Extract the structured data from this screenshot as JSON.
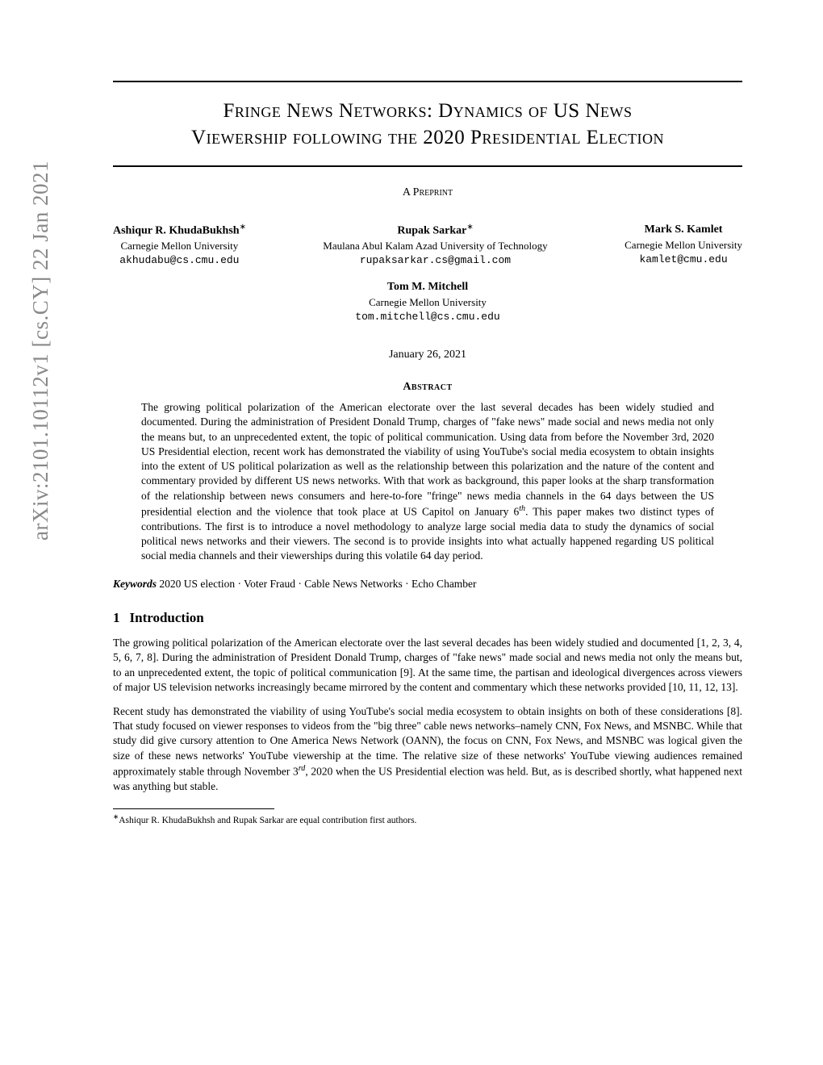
{
  "arxiv_stamp": "arXiv:2101.10112v1  [cs.CY]  22 Jan 2021",
  "title_line1": "Fringe News Networks: Dynamics of US News",
  "title_line2": "Viewership following the 2020 Presidential Election",
  "preprint_label": "A Preprint",
  "authors": [
    {
      "name": "Ashiqur R. KhudaBukhsh",
      "suffix": "∗",
      "affil": "Carnegie Mellon University",
      "email": "akhudabu@cs.cmu.edu"
    },
    {
      "name": "Rupak Sarkar",
      "suffix": "∗",
      "affil": "Maulana Abul Kalam Azad University of Technology",
      "email": "rupaksarkar.cs@gmail.com"
    },
    {
      "name": "Mark S. Kamlet",
      "suffix": "",
      "affil": "Carnegie Mellon University",
      "email": "kamlet@cmu.edu"
    }
  ],
  "author4": {
    "name": "Tom M. Mitchell",
    "affil": "Carnegie Mellon University",
    "email": "tom.mitchell@cs.cmu.edu"
  },
  "date": "January 26, 2021",
  "abstract_heading": "Abstract",
  "abstract_text": "The growing political polarization of the American electorate over the last several decades has been widely studied and documented. During the administration of President Donald Trump, charges of \"fake news\" made social and news media not only the means but, to an unprecedented extent, the topic of political communication. Using data from before the November 3rd, 2020 US Presidential election, recent work has demonstrated the viability of using YouTube's social media ecosystem to obtain insights into the extent of US political polarization as well as the relationship between this polarization and the nature of the content and commentary provided by different US news networks. With that work as background, this paper looks at the sharp transformation of the relationship between news consumers and here-to-fore \"fringe\" news media channels in the 64 days between the US presidential election and the violence that took place at US Capitol on January 6",
  "abstract_text_after_sup": ". This paper makes two distinct types of contributions. The first is to introduce a novel methodology to analyze large social media data to study the dynamics of social political news networks and their viewers. The second is to provide insights into what actually happened regarding US political social media channels and their viewerships during this volatile 64 day period.",
  "abstract_sup": "th",
  "keywords_label": "Keywords",
  "keywords_text": " 2020 US election · Voter Fraud · Cable News Networks · Echo Chamber",
  "section1_num": "1",
  "section1_title": "Introduction",
  "para1": "The growing political polarization of the American electorate over the last several decades has been widely studied and documented [1, 2, 3, 4, 5, 6, 7, 8]. During the administration of President Donald Trump, charges of \"fake news\" made social and news media not only the means but, to an unprecedented extent, the topic of political communication [9]. At the same time, the partisan and ideological divergences across viewers of major US television networks increasingly became mirrored by the content and commentary which these networks provided [10, 11, 12, 13].",
  "para2_before": "Recent study has demonstrated the viability of using YouTube's social media ecosystem to obtain insights on both of these considerations [8]. That study focused on viewer responses to videos from the \"big three\" cable news networks–namely CNN, Fox News, and MSNBC. While that study did give cursory attention to One America News Network (OANN), the focus on CNN, Fox News, and MSNBC was logical given the size of these news networks' YouTube viewership at the time. The relative size of these networks' YouTube viewing audiences remained approximately stable through November 3",
  "para2_sup": "rd",
  "para2_after": ", 2020 when the US Presidential election was held. But, as is described shortly, what happened next was anything but stable.",
  "footnote_marker": "∗",
  "footnote_text": "Ashiqur R. KhudaBukhsh and Rupak Sarkar are equal contribution first authors."
}
